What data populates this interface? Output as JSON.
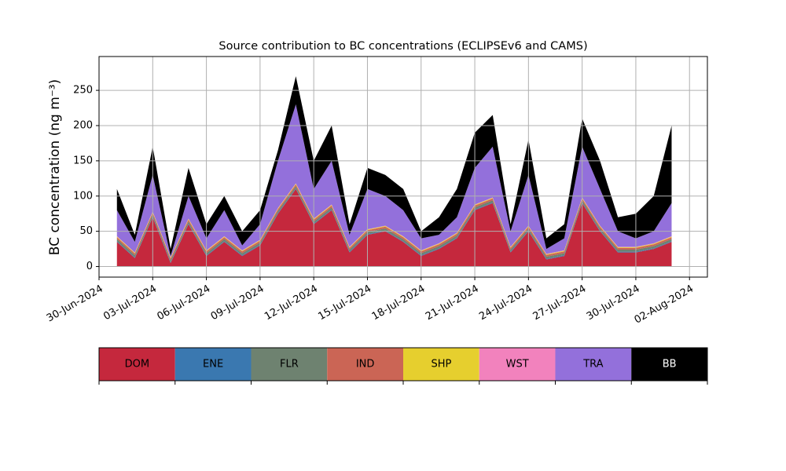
{
  "chart_data": {
    "type": "stacked_area",
    "title": "Source contribution to BC concentrations (ECLIPSEv6 and CAMS)",
    "y_label": "BC concentration (ng m⁻³)",
    "x": [
      "2024-07-01",
      "2024-07-02",
      "2024-07-03",
      "2024-07-04",
      "2024-07-05",
      "2024-07-06",
      "2024-07-07",
      "2024-07-08",
      "2024-07-09",
      "2024-07-10",
      "2024-07-11",
      "2024-07-12",
      "2024-07-13",
      "2024-07-14",
      "2024-07-15",
      "2024-07-16",
      "2024-07-17",
      "2024-07-18",
      "2024-07-19",
      "2024-07-20",
      "2024-07-21",
      "2024-07-22",
      "2024-07-23",
      "2024-07-24",
      "2024-07-25",
      "2024-07-26",
      "2024-07-27",
      "2024-07-28",
      "2024-07-29",
      "2024-07-30",
      "2024-07-31",
      "2024-08-01"
    ],
    "series": [
      {
        "name": "DOM",
        "color": "#c5283d",
        "values": [
          35,
          12,
          70,
          5,
          60,
          15,
          35,
          15,
          30,
          75,
          110,
          60,
          80,
          20,
          45,
          50,
          35,
          15,
          25,
          40,
          80,
          90,
          20,
          50,
          10,
          15,
          90,
          50,
          20,
          20,
          25,
          35
        ]
      },
      {
        "name": "ENE",
        "color": "#3a78b0",
        "values": [
          1,
          1,
          1,
          1,
          1,
          1,
          1,
          1,
          1,
          1,
          1,
          1,
          1,
          1,
          1,
          1,
          1,
          1,
          1,
          1,
          1,
          1,
          1,
          1,
          1,
          1,
          1,
          1,
          1,
          1,
          1,
          1
        ]
      },
      {
        "name": "FLR",
        "color": "#6e8270",
        "values": [
          3,
          3,
          3,
          3,
          3,
          3,
          3,
          3,
          3,
          3,
          3,
          3,
          3,
          3,
          3,
          3,
          3,
          3,
          3,
          3,
          3,
          3,
          3,
          3,
          3,
          3,
          3,
          3,
          3,
          3,
          3,
          3
        ]
      },
      {
        "name": "IND",
        "color": "#cb6555",
        "values": [
          2.5,
          2.5,
          2.5,
          2.5,
          2.5,
          2.5,
          2.5,
          2.5,
          2.5,
          2.5,
          2.5,
          2.5,
          2.5,
          2.5,
          2.5,
          2.5,
          2.5,
          2.5,
          2.5,
          2.5,
          2.5,
          2.5,
          2.5,
          2.5,
          2.5,
          2.5,
          2.5,
          2.5,
          2.5,
          2.5,
          2.5,
          2.5
        ]
      },
      {
        "name": "SHP",
        "color": "#e6cf2e",
        "values": [
          1,
          1,
          1,
          1,
          1,
          1,
          1,
          1,
          1,
          1,
          1,
          1,
          1,
          1,
          1,
          1,
          1,
          1,
          1,
          1,
          1,
          1,
          1,
          1,
          1,
          1,
          1,
          1,
          1,
          1,
          1,
          1
        ]
      },
      {
        "name": "WST",
        "color": "#f282bd",
        "values": [
          0.5,
          0.5,
          0.5,
          0.5,
          0.5,
          0.5,
          0.5,
          0.5,
          0.5,
          0.5,
          0.5,
          0.5,
          0.5,
          0.5,
          0.5,
          0.5,
          0.5,
          0.5,
          0.5,
          0.5,
          0.5,
          0.5,
          0.5,
          0.5,
          0.5,
          0.5,
          0.5,
          0.5,
          0.5,
          0.5,
          0.5,
          0.5
        ]
      },
      {
        "name": "TRA",
        "color": "#9370db",
        "values": [
          37,
          15,
          52,
          2,
          32,
          17,
          37,
          7,
          22,
          67,
          112,
          42,
          62,
          17,
          57,
          42,
          37,
          17,
          12,
          22,
          52,
          72,
          22,
          72,
          7,
          17,
          72,
          52,
          22,
          12,
          17,
          47
        ]
      },
      {
        "name": "BB",
        "color": "#000000",
        "values": [
          30,
          10,
          40,
          10,
          40,
          20,
          20,
          20,
          20,
          15,
          40,
          40,
          50,
          15,
          30,
          30,
          30,
          10,
          25,
          40,
          50,
          45,
          10,
          50,
          15,
          20,
          40,
          40,
          20,
          35,
          50,
          110
        ]
      }
    ],
    "xlim": [
      "2024-06-30",
      "2024-08-03"
    ],
    "xticks": [
      {
        "value": "2024-06-30",
        "label": "30-Jun-2024"
      },
      {
        "value": "2024-07-03",
        "label": "03-Jul-2024"
      },
      {
        "value": "2024-07-06",
        "label": "06-Jul-2024"
      },
      {
        "value": "2024-07-09",
        "label": "09-Jul-2024"
      },
      {
        "value": "2024-07-12",
        "label": "12-Jul-2024"
      },
      {
        "value": "2024-07-15",
        "label": "15-Jul-2024"
      },
      {
        "value": "2024-07-18",
        "label": "18-Jul-2024"
      },
      {
        "value": "2024-07-21",
        "label": "21-Jul-2024"
      },
      {
        "value": "2024-07-24",
        "label": "24-Jul-2024"
      },
      {
        "value": "2024-07-27",
        "label": "27-Jul-2024"
      },
      {
        "value": "2024-07-30",
        "label": "30-Jul-2024"
      },
      {
        "value": "2024-08-02",
        "label": "02-Aug-2024"
      }
    ],
    "ylim": [
      -15,
      298
    ],
    "yticks": [
      0,
      50,
      100,
      150,
      200,
      250
    ],
    "grid": true
  }
}
